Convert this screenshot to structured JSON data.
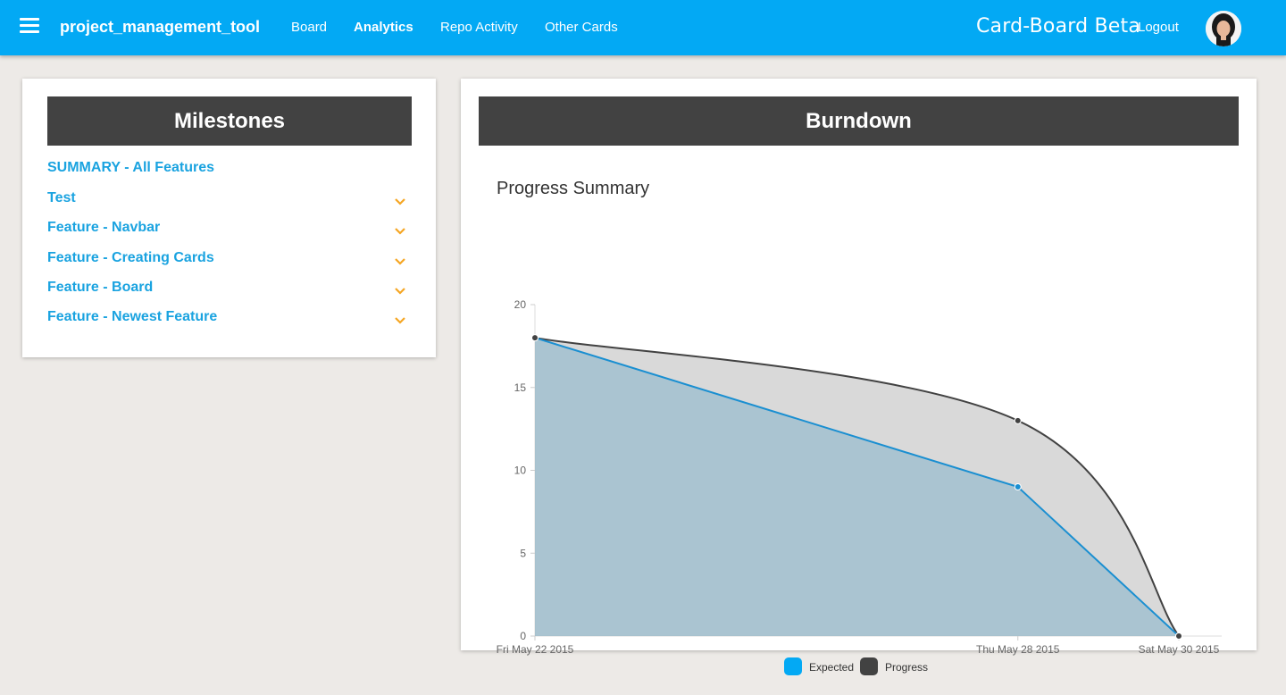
{
  "header": {
    "brand": "project_management_tool",
    "nav": [
      "Board",
      "Analytics",
      "Repo Activity",
      "Other Cards"
    ],
    "active_nav": "Analytics",
    "app_title": "Card-Board Beta",
    "logout": "Logout"
  },
  "milestones": {
    "title": "Milestones",
    "summary": "SUMMARY - All Features",
    "items": [
      "Test",
      "Feature - Navbar",
      "Feature - Creating Cards",
      "Feature - Board",
      "Feature - Newest Feature"
    ]
  },
  "burndown": {
    "title": "Burndown"
  },
  "colors": {
    "accent": "#03a9f4",
    "header_dark": "#424242",
    "chevron": "#f5a623"
  },
  "chart_data": {
    "type": "area",
    "title": "Progress Summary",
    "categories": [
      "Fri May 22 2015",
      "Thu May 28 2015",
      "Sat May 30 2015"
    ],
    "series": [
      {
        "name": "Expected",
        "values": [
          18,
          9,
          0
        ],
        "color": "#03a9f4"
      },
      {
        "name": "Progress",
        "values": [
          18,
          13,
          0
        ],
        "color": "#424242"
      }
    ],
    "yticks": [
      0,
      5,
      10,
      15,
      20
    ],
    "ylim": [
      0,
      20
    ],
    "legend": "bottom-center"
  }
}
